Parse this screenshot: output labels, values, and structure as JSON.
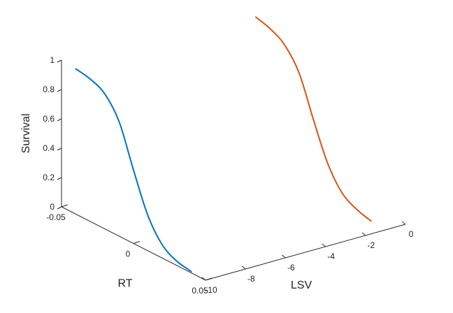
{
  "chart_data": {
    "type": "line",
    "projection": "3d",
    "grid": false,
    "legend": "none",
    "axes": {
      "rt": {
        "label": "RT",
        "range": [
          -0.05,
          0.05
        ],
        "ticks": [
          {
            "value": -0.05,
            "label": "-0.05"
          },
          {
            "value": 0,
            "label": "0"
          },
          {
            "value": 0.05,
            "label": "0.05"
          }
        ]
      },
      "lsv": {
        "label": "LSV",
        "range": [
          -10,
          0
        ],
        "ticks": [
          {
            "value": -10,
            "label": "-10"
          },
          {
            "value": -8,
            "label": "-8"
          },
          {
            "value": -6,
            "label": "-6"
          },
          {
            "value": -4,
            "label": "-4"
          },
          {
            "value": -2,
            "label": "-2"
          },
          {
            "value": 0,
            "label": "0"
          }
        ]
      },
      "survival": {
        "label": "Survival",
        "range": [
          0,
          1
        ],
        "ticks": [
          {
            "value": 0,
            "label": "0"
          },
          {
            "value": 0.2,
            "label": "0.2"
          },
          {
            "value": 0.4,
            "label": "0.4"
          },
          {
            "value": 0.6,
            "label": "0.6"
          },
          {
            "value": 0.8,
            "label": "0.8"
          },
          {
            "value": 1,
            "label": "1"
          }
        ]
      }
    },
    "series": [
      {
        "color": "#0072BD",
        "lsv": -10,
        "rt": [
          -0.04,
          -0.03,
          -0.02,
          -0.01,
          0.0,
          0.01,
          0.02,
          0.03,
          0.04
        ],
        "survival": [
          0.99,
          0.97,
          0.92,
          0.78,
          0.5,
          0.24,
          0.09,
          0.03,
          0.01
        ]
      },
      {
        "color": "#D95319",
        "lsv": -1,
        "rt": [
          -0.04,
          -0.03,
          -0.02,
          -0.01,
          0.0,
          0.01,
          0.02,
          0.03,
          0.04
        ],
        "survival": [
          1.0,
          0.97,
          0.91,
          0.77,
          0.5,
          0.25,
          0.1,
          0.04,
          0.01
        ]
      }
    ]
  }
}
